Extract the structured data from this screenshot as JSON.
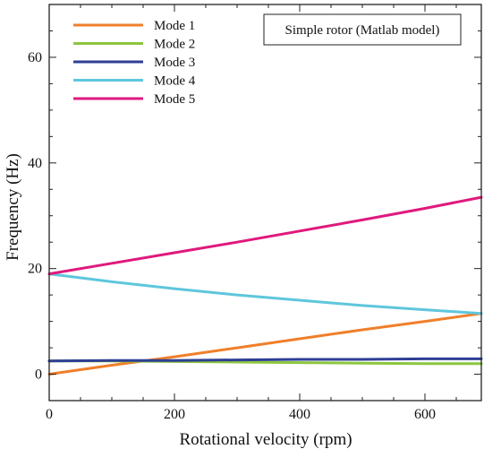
{
  "chart_data": {
    "type": "line",
    "xlabel": "Rotational velocity (rpm)",
    "ylabel": "Frequency (Hz)",
    "xlim": [
      0,
      690
    ],
    "ylim": [
      -5,
      70
    ],
    "xticks": [
      0,
      200,
      400,
      600
    ],
    "yticks": [
      0,
      20,
      40,
      60
    ],
    "xtick_labels": [
      "0",
      "200",
      "400",
      "600"
    ],
    "ytick_labels": [
      "0",
      "20",
      "40",
      "60"
    ],
    "grid": false,
    "legend_position": "top-left",
    "annotation": "Simple rotor (Matlab model)",
    "series": [
      {
        "name": "Mode 1",
        "color": "#f07f2a",
        "x": [
          0,
          100,
          200,
          300,
          400,
          500,
          600,
          690
        ],
        "y": [
          0,
          1.7,
          3.3,
          5.0,
          6.7,
          8.4,
          10.0,
          11.5
        ]
      },
      {
        "name": "Mode 2",
        "color": "#8cc63f",
        "x": [
          0,
          100,
          200,
          300,
          400,
          500,
          600,
          690
        ],
        "y": [
          2.5,
          2.5,
          2.4,
          2.3,
          2.2,
          2.1,
          2.0,
          2.0
        ]
      },
      {
        "name": "Mode 3",
        "color": "#2e3f95",
        "x": [
          0,
          100,
          200,
          300,
          400,
          500,
          600,
          690
        ],
        "y": [
          2.5,
          2.6,
          2.6,
          2.7,
          2.8,
          2.8,
          2.9,
          2.9
        ]
      },
      {
        "name": "Mode 4",
        "color": "#5ec6dc",
        "x": [
          0,
          100,
          200,
          300,
          400,
          500,
          600,
          690
        ],
        "y": [
          19.0,
          17.5,
          16.2,
          15.0,
          14.0,
          13.0,
          12.2,
          11.5
        ]
      },
      {
        "name": "Mode 5",
        "color": "#e0197d",
        "x": [
          0,
          100,
          200,
          300,
          400,
          500,
          600,
          690
        ],
        "y": [
          19.0,
          21.0,
          23.0,
          25.0,
          27.1,
          29.2,
          31.4,
          33.5
        ]
      }
    ]
  }
}
